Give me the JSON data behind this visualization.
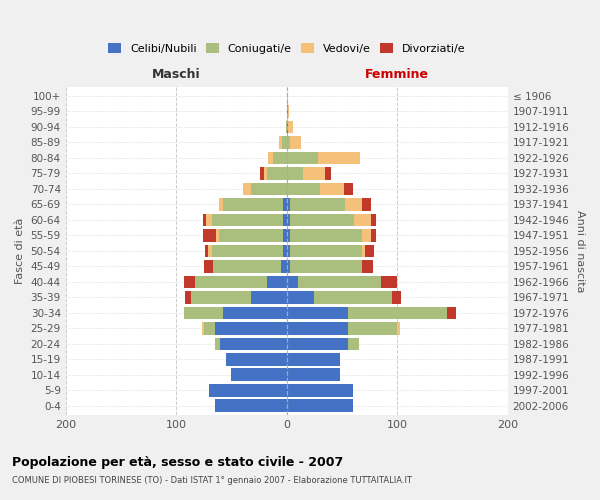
{
  "age_groups": [
    "0-4",
    "5-9",
    "10-14",
    "15-19",
    "20-24",
    "25-29",
    "30-34",
    "35-39",
    "40-44",
    "45-49",
    "50-54",
    "55-59",
    "60-64",
    "65-69",
    "70-74",
    "75-79",
    "80-84",
    "85-89",
    "90-94",
    "95-99",
    "100+"
  ],
  "birth_years": [
    "2002-2006",
    "1997-2001",
    "1992-1996",
    "1987-1991",
    "1982-1986",
    "1977-1981",
    "1972-1976",
    "1967-1971",
    "1962-1966",
    "1957-1961",
    "1952-1956",
    "1947-1951",
    "1942-1946",
    "1937-1941",
    "1932-1936",
    "1927-1931",
    "1922-1926",
    "1917-1921",
    "1912-1916",
    "1907-1911",
    "≤ 1906"
  ],
  "males": {
    "celibi": [
      65,
      70,
      50,
      55,
      60,
      65,
      58,
      32,
      18,
      5,
      3,
      3,
      3,
      3,
      0,
      0,
      0,
      0,
      0,
      0,
      0
    ],
    "coniugati": [
      0,
      0,
      0,
      0,
      5,
      10,
      35,
      55,
      65,
      62,
      65,
      58,
      65,
      55,
      32,
      18,
      12,
      4,
      1,
      0,
      0
    ],
    "vedovi": [
      0,
      0,
      0,
      0,
      0,
      2,
      0,
      0,
      0,
      0,
      3,
      3,
      5,
      3,
      8,
      3,
      5,
      3,
      0,
      0,
      0
    ],
    "divorziati": [
      0,
      0,
      0,
      0,
      0,
      0,
      0,
      5,
      10,
      8,
      3,
      12,
      3,
      0,
      0,
      3,
      0,
      0,
      0,
      0,
      0
    ]
  },
  "females": {
    "nubili": [
      60,
      60,
      48,
      48,
      55,
      55,
      55,
      25,
      10,
      3,
      3,
      3,
      3,
      3,
      0,
      0,
      0,
      0,
      1,
      1,
      0
    ],
    "coniugate": [
      0,
      0,
      0,
      0,
      10,
      45,
      90,
      70,
      75,
      65,
      65,
      65,
      58,
      50,
      30,
      15,
      28,
      3,
      0,
      0,
      0
    ],
    "vedove": [
      0,
      0,
      0,
      0,
      0,
      2,
      0,
      0,
      0,
      0,
      3,
      8,
      15,
      15,
      22,
      20,
      38,
      10,
      5,
      1,
      0
    ],
    "divorziate": [
      0,
      0,
      0,
      0,
      0,
      0,
      8,
      8,
      15,
      10,
      8,
      5,
      5,
      8,
      8,
      5,
      0,
      0,
      0,
      0,
      0
    ]
  },
  "colors": {
    "celibi_nubili": "#4472C4",
    "coniugati": "#AABF7E",
    "vedovi": "#F5C07A",
    "divorziati": "#C0392B"
  },
  "title": "Popolazione per età, sesso e stato civile - 2007",
  "subtitle": "COMUNE DI PIOBESI TORINESE (TO) - Dati ISTAT 1° gennaio 2007 - Elaborazione TUTTAITALIA.IT",
  "xlabel_left": "Maschi",
  "xlabel_right": "Femmine",
  "ylabel_left": "Fasce di età",
  "ylabel_right": "Anni di nascita",
  "xlim": 200,
  "bg_color": "#f0f0f0",
  "plot_bg_color": "#ffffff"
}
